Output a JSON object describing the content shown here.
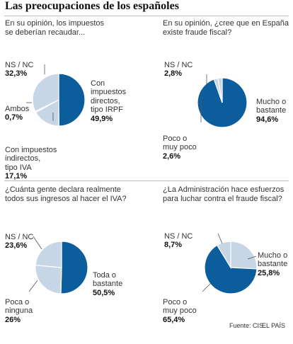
{
  "title": "Las preocupaciones de los españoles",
  "footer": {
    "source": "Fuente: CIS.",
    "publisher": "EL PAÍS"
  },
  "colors": {
    "dark": "#0b5d9b",
    "light": "#c6d6e5",
    "border": "#ffffff"
  },
  "chart_data": [
    {
      "type": "pie",
      "title": "En su opinión, los impuestos\nse deberían recaudar...",
      "slices": [
        {
          "label": "Con\nimpuestos\ndirectos,\ntipo IRPF",
          "display": "49,9%",
          "value": 49.9,
          "color": "dark"
        },
        {
          "label": "Con impuestos\nindirectos,\ntipo IVA",
          "display": "17,1%",
          "value": 17.1,
          "color": "light"
        },
        {
          "label": "Ambos",
          "display": "0,7%",
          "value": 0.7,
          "color": "light"
        },
        {
          "label": "NS / NC",
          "display": "32,3%",
          "value": 32.3,
          "color": "light"
        }
      ]
    },
    {
      "type": "pie",
      "title": "En su opinión, ¿cree  que en España\nexiste fraude fiscal?",
      "slices": [
        {
          "label": "Mucho o\nbastante",
          "display": "94,6%",
          "value": 94.6,
          "color": "dark"
        },
        {
          "label": "Poco o\nmuy poco",
          "display": "2,6%",
          "value": 2.6,
          "color": "light"
        },
        {
          "label": "NS / NC",
          "display": "2,8%",
          "value": 2.8,
          "color": "light"
        }
      ]
    },
    {
      "type": "pie",
      "title": "¿Cuánta gente declara realmente\ntodos sus ingresos al hacer el IVA?",
      "slices": [
        {
          "label": "Toda o\nbastante",
          "display": "50,5%",
          "value": 50.5,
          "color": "dark"
        },
        {
          "label": "Poca o\nninguna",
          "display": "26%",
          "value": 26.0,
          "color": "light"
        },
        {
          "label": "NS / NC",
          "display": "23,6%",
          "value": 23.6,
          "color": "light"
        }
      ]
    },
    {
      "type": "pie",
      "title": "¿La Administración hace esfuerzos\npara luchar contra el fraude fiscal?",
      "slices": [
        {
          "label": "Mucho o\nbastante",
          "display": "25,8%",
          "value": 25.8,
          "color": "light"
        },
        {
          "label": "Poco o\nmuy poco",
          "display": "65,4%",
          "value": 65.4,
          "color": "dark"
        },
        {
          "label": "NS / NC",
          "display": "8,7%",
          "value": 8.7,
          "color": "light"
        }
      ]
    }
  ]
}
